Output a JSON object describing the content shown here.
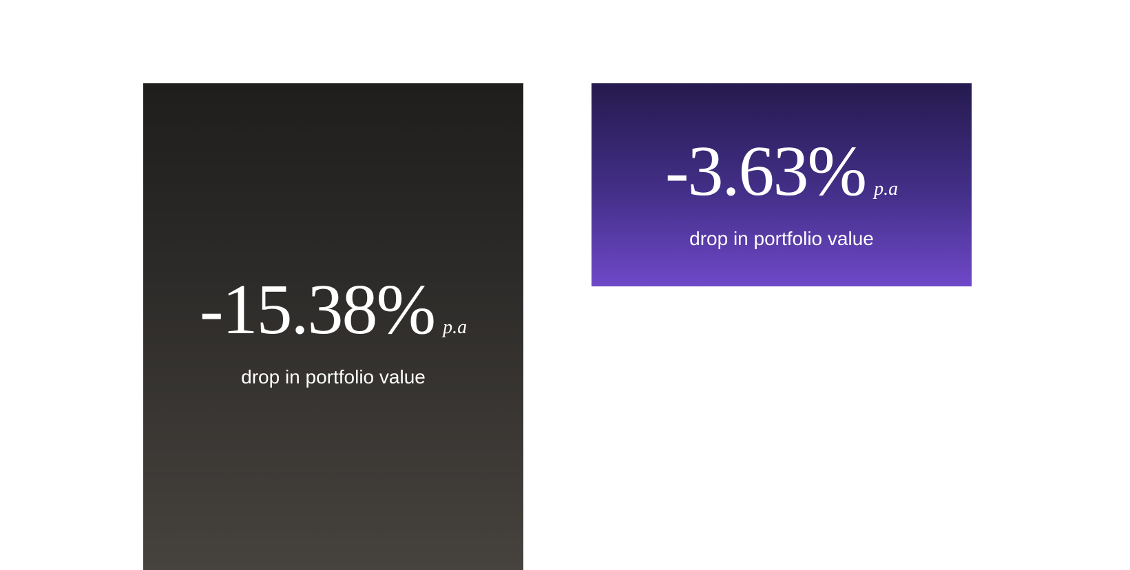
{
  "cards": [
    {
      "value": "-15.38%",
      "unit": "p.a",
      "caption": "drop in portfolio value"
    },
    {
      "value": "-3.63%",
      "unit": "p.a",
      "caption": "drop in portfolio value"
    }
  ]
}
